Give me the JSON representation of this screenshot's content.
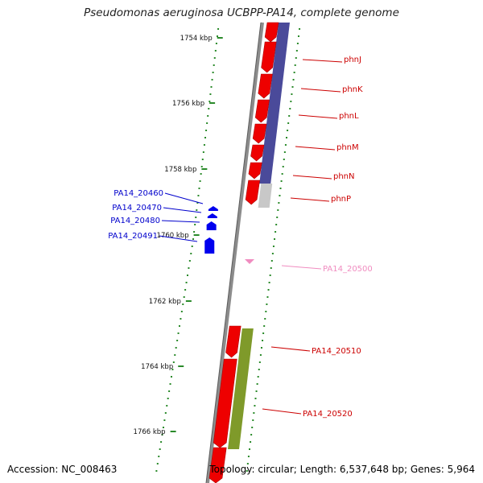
{
  "title": "Pseudomonas aeruginosa UCBPP-PA14, complete genome",
  "accession_label": "Accession: NC_008463",
  "topology_label": "Topology: circular; Length: 6,537,648 bp; Genes: 5,964",
  "colors": {
    "ring": "#8c8c8c",
    "tick": "#2a8a2a",
    "gene_red": "#ee0000",
    "purple_track": "#4a4a9a",
    "olive_track": "#7f9a2a",
    "grey_track": "#c8c8c8",
    "blue_gene": "#0000ee",
    "pink_gene": "#f08cc0",
    "label_red": "#cc0000",
    "label_blue": "#0000cc",
    "label_pink": "#f08cc0"
  },
  "ticks": [
    "1754 kbp",
    "1756 kbp",
    "1758 kbp",
    "1760 kbp",
    "1762 kbp",
    "1764 kbp",
    "1766 kbp"
  ],
  "gene_labels": [
    {
      "text": "phnJ",
      "style": "red"
    },
    {
      "text": "phnK",
      "style": "red"
    },
    {
      "text": "phnL",
      "style": "red"
    },
    {
      "text": "phnM",
      "style": "red"
    },
    {
      "text": "phnN",
      "style": "red"
    },
    {
      "text": "phnP",
      "style": "red"
    },
    {
      "text": "PA14_20460",
      "style": "blue"
    },
    {
      "text": "PA14_20470",
      "style": "blue"
    },
    {
      "text": "PA14_20480",
      "style": "blue"
    },
    {
      "text": "PA14_20491",
      "style": "blue"
    },
    {
      "text": "PA14_20500",
      "style": "pink"
    },
    {
      "text": "PA14_20510",
      "style": "red"
    },
    {
      "text": "PA14_20520",
      "style": "red"
    }
  ]
}
